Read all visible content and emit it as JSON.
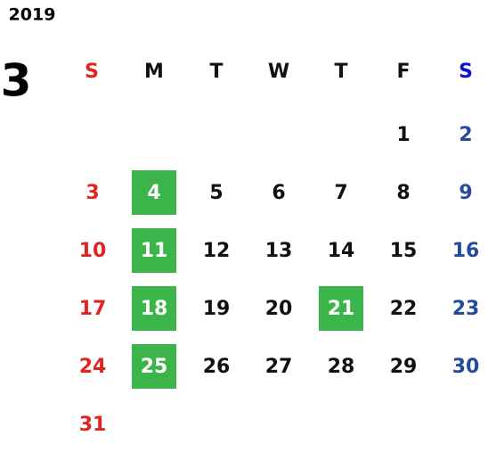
{
  "year": "2019",
  "month": "3",
  "weekdays": [
    "S",
    "M",
    "T",
    "W",
    "T",
    "F",
    "S"
  ],
  "weeks": [
    [
      null,
      null,
      null,
      null,
      null,
      {
        "day": "1"
      },
      {
        "day": "2"
      }
    ],
    [
      {
        "day": "3"
      },
      {
        "day": "4",
        "highlighted": true
      },
      {
        "day": "5"
      },
      {
        "day": "6"
      },
      {
        "day": "7"
      },
      {
        "day": "8"
      },
      {
        "day": "9"
      }
    ],
    [
      {
        "day": "10"
      },
      {
        "day": "11",
        "highlighted": true
      },
      {
        "day": "12"
      },
      {
        "day": "13"
      },
      {
        "day": "14"
      },
      {
        "day": "15"
      },
      {
        "day": "16"
      }
    ],
    [
      {
        "day": "17"
      },
      {
        "day": "18",
        "highlighted": true
      },
      {
        "day": "19"
      },
      {
        "day": "20"
      },
      {
        "day": "21",
        "highlighted": true
      },
      {
        "day": "22"
      },
      {
        "day": "23"
      }
    ],
    [
      {
        "day": "24"
      },
      {
        "day": "25",
        "highlighted": true
      },
      {
        "day": "26"
      },
      {
        "day": "27"
      },
      {
        "day": "28"
      },
      {
        "day": "29"
      },
      {
        "day": "30"
      }
    ],
    [
      {
        "day": "31"
      },
      null,
      null,
      null,
      null,
      null,
      null
    ]
  ]
}
